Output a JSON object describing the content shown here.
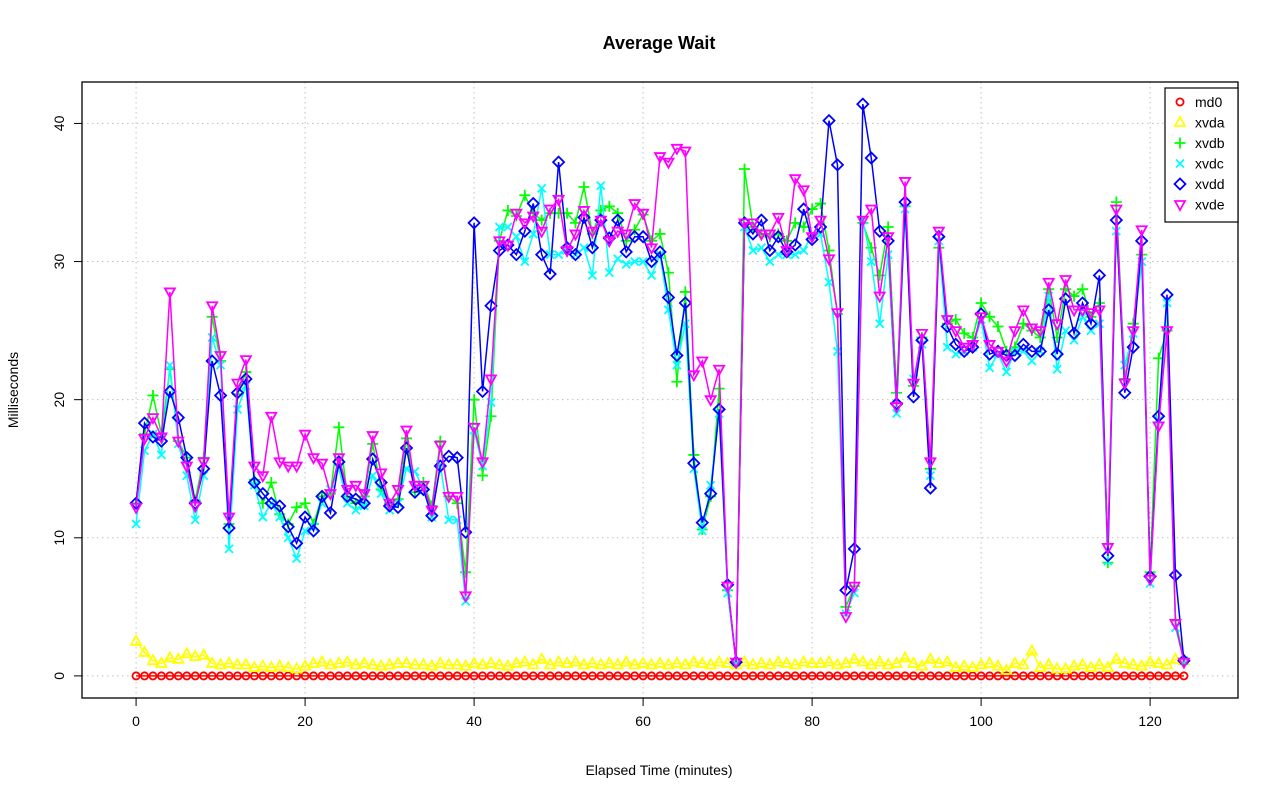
{
  "chart_data": {
    "type": "line",
    "title": "Average Wait",
    "xlabel": "Elapsed Time (minutes)",
    "ylabel": "Milliseconds",
    "xlim": [
      -6.4,
      130.4
    ],
    "ylim": [
      -1.6,
      43.0
    ],
    "xticks": [
      0,
      20,
      40,
      60,
      80,
      100,
      120
    ],
    "yticks": [
      0,
      10,
      20,
      30,
      40
    ],
    "grid": true,
    "legend_position": "top-right",
    "x": [
      0,
      1,
      2,
      3,
      4,
      5,
      6,
      7,
      8,
      9,
      10,
      11,
      12,
      13,
      14,
      15,
      16,
      17,
      18,
      19,
      20,
      21,
      22,
      23,
      24,
      25,
      26,
      27,
      28,
      29,
      30,
      31,
      32,
      33,
      34,
      35,
      36,
      37,
      38,
      39,
      40,
      41,
      42,
      43,
      44,
      45,
      46,
      47,
      48,
      49,
      50,
      51,
      52,
      53,
      54,
      55,
      56,
      57,
      58,
      59,
      60,
      61,
      62,
      63,
      64,
      65,
      66,
      67,
      68,
      69,
      70,
      71,
      72,
      73,
      74,
      75,
      76,
      77,
      78,
      79,
      80,
      81,
      82,
      83,
      84,
      85,
      86,
      87,
      88,
      89,
      90,
      91,
      92,
      93,
      94,
      95,
      96,
      97,
      98,
      99,
      100,
      101,
      102,
      103,
      104,
      105,
      106,
      107,
      108,
      109,
      110,
      111,
      112,
      113,
      114,
      115,
      116,
      117,
      118,
      119,
      120,
      121,
      122,
      123,
      124
    ],
    "series": [
      {
        "name": "md0",
        "color": "#ff0000",
        "marker": "circle",
        "values": [
          0,
          0,
          0,
          0,
          0,
          0,
          0,
          0,
          0,
          0,
          0,
          0,
          0,
          0,
          0,
          0,
          0,
          0,
          0,
          0,
          0,
          0,
          0,
          0,
          0,
          0,
          0,
          0,
          0,
          0,
          0,
          0,
          0,
          0,
          0,
          0,
          0,
          0,
          0,
          0,
          0,
          0,
          0,
          0,
          0,
          0,
          0,
          0,
          0,
          0,
          0,
          0,
          0,
          0,
          0,
          0,
          0,
          0,
          0,
          0,
          0,
          0,
          0,
          0,
          0,
          0,
          0,
          0,
          0,
          0,
          0,
          0,
          0,
          0,
          0,
          0,
          0,
          0,
          0,
          0,
          0,
          0,
          0,
          0,
          0,
          0,
          0,
          0,
          0,
          0,
          0,
          0,
          0,
          0,
          0,
          0,
          0,
          0,
          0,
          0,
          0,
          0,
          0,
          0,
          0,
          0,
          0,
          0,
          0,
          0,
          0,
          0,
          0,
          0,
          0,
          0,
          0,
          0,
          0,
          0,
          0,
          0,
          0,
          0,
          0
        ]
      },
      {
        "name": "xvda",
        "color": "#ffff00",
        "marker": "triangle",
        "values": [
          2.5,
          1.7,
          1.1,
          0.9,
          1.3,
          1.2,
          1.6,
          1.4,
          1.5,
          0.9,
          0.8,
          0.9,
          0.8,
          0.8,
          0.6,
          0.7,
          0.6,
          0.7,
          0.6,
          0.5,
          0.7,
          0.9,
          1.0,
          0.8,
          0.9,
          1.0,
          0.8,
          0.9,
          0.8,
          0.7,
          0.8,
          0.9,
          0.9,
          0.8,
          0.8,
          0.7,
          0.9,
          0.8,
          0.8,
          0.7,
          0.9,
          0.8,
          0.9,
          0.8,
          0.7,
          0.9,
          1.0,
          0.8,
          1.2,
          0.8,
          1.0,
          0.9,
          1.0,
          0.8,
          0.9,
          0.8,
          0.9,
          0.8,
          1.0,
          0.8,
          0.9,
          0.8,
          0.9,
          0.8,
          0.9,
          0.8,
          1.0,
          0.9,
          0.8,
          1.0,
          0.9,
          0.8,
          1.0,
          0.8,
          0.9,
          0.8,
          1.0,
          0.9,
          0.8,
          1.0,
          0.9,
          0.9,
          1.0,
          0.8,
          0.9,
          1.2,
          1.0,
          0.8,
          1.0,
          0.8,
          0.9,
          1.3,
          0.9,
          0.7,
          1.2,
          0.9,
          1.0,
          0.6,
          0.7,
          0.6,
          0.8,
          0.9,
          0.7,
          0.4,
          0.9,
          0.8,
          1.8,
          0.6,
          0.8,
          0.5,
          0.5,
          0.7,
          0.8,
          0.6,
          0.8,
          0.6,
          1.2,
          0.9,
          0.8,
          0.7,
          1.0,
          0.9,
          0.8,
          1.2,
          1.1
        ]
      },
      {
        "name": "xvdb",
        "color": "#00ff00",
        "marker": "plus",
        "values": [
          12.5,
          17.5,
          20.3,
          17.5,
          22.2,
          17.0,
          15.8,
          12.7,
          15.8,
          26.0,
          22.8,
          11.0,
          20.4,
          22.0,
          14.2,
          12.5,
          14.0,
          11.7,
          11.0,
          12.2,
          12.5,
          11.0,
          13.0,
          13.2,
          18.0,
          13.0,
          12.5,
          13.0,
          16.8,
          13.5,
          12.5,
          12.8,
          17.2,
          13.3,
          14.0,
          12.3,
          17.0,
          13.0,
          12.5,
          7.5,
          20.0,
          14.5,
          18.8,
          31.5,
          33.7,
          33.3,
          34.8,
          33.5,
          33.0,
          33.5,
          33.5,
          33.5,
          32.8,
          35.4,
          32.0,
          33.7,
          34.0,
          33.5,
          31.5,
          32.3,
          33.4,
          31.5,
          32.0,
          29.2,
          21.3,
          27.8,
          16.0,
          10.6,
          13.0,
          20.8,
          6.2,
          1.0,
          36.7,
          32.5,
          32.0,
          31.8,
          32.0,
          31.5,
          32.8,
          32.5,
          33.8,
          34.2,
          30.8,
          26.2,
          5.0,
          6.5,
          32.8,
          31.0,
          29.0,
          32.5,
          20.5,
          34.0,
          21.0,
          24.5,
          15.0,
          31.0,
          25.5,
          25.8,
          24.8,
          24.5,
          27.0,
          26.0,
          25.3,
          23.5,
          23.8,
          25.5,
          25.0,
          24.5,
          28.0,
          24.5,
          28.0,
          27.5,
          28.0,
          26.0,
          27.0,
          8.2,
          34.3,
          21.5,
          25.5,
          30.5,
          7.5,
          23.0,
          25.0,
          4.0,
          1.2
        ]
      },
      {
        "name": "xvdc",
        "color": "#00ffff",
        "marker": "cross",
        "values": [
          11.0,
          16.3,
          17.5,
          16.0,
          22.5,
          16.8,
          14.5,
          11.3,
          14.5,
          24.5,
          22.5,
          9.2,
          19.3,
          21.0,
          13.8,
          11.5,
          12.5,
          11.5,
          10.0,
          8.5,
          10.5,
          10.8,
          12.5,
          13.5,
          15.0,
          12.5,
          12.0,
          12.3,
          14.5,
          13.2,
          12.0,
          12.5,
          15.0,
          14.8,
          13.5,
          11.5,
          15.3,
          11.3,
          11.3,
          5.4,
          17.8,
          15.2,
          19.8,
          32.5,
          32.5,
          31.8,
          30.0,
          32.0,
          35.3,
          30.5,
          30.5,
          30.8,
          30.5,
          31.0,
          29.0,
          35.5,
          29.2,
          30.2,
          29.8,
          30.0,
          30.0,
          29.0,
          30.5,
          26.5,
          22.5,
          25.5,
          15.0,
          10.5,
          13.8,
          19.0,
          6.0,
          1.0,
          32.5,
          30.8,
          31.0,
          30.0,
          30.5,
          30.5,
          30.5,
          30.8,
          32.0,
          32.0,
          28.5,
          23.5,
          4.5,
          6.0,
          33.0,
          30.0,
          25.5,
          30.5,
          19.0,
          33.8,
          21.5,
          24.0,
          14.5,
          31.5,
          23.8,
          23.3,
          23.5,
          23.8,
          25.8,
          22.3,
          23.3,
          22.0,
          23.5,
          23.5,
          22.8,
          23.5,
          27.5,
          22.2,
          25.0,
          24.3,
          26.0,
          25.0,
          25.5,
          8.3,
          32.2,
          22.5,
          24.8,
          30.0,
          6.7,
          18.5,
          27.0,
          3.5,
          1.1
        ]
      },
      {
        "name": "xvdd",
        "color": "#0000ff",
        "marker": "diamond",
        "values": [
          12.5,
          18.3,
          17.3,
          17.0,
          20.6,
          18.7,
          15.8,
          12.5,
          15.0,
          22.8,
          20.3,
          10.7,
          20.5,
          21.5,
          14.0,
          13.2,
          12.5,
          12.3,
          10.8,
          9.6,
          11.5,
          10.5,
          13.0,
          11.8,
          15.5,
          13.0,
          12.8,
          12.5,
          15.7,
          14.0,
          12.3,
          12.2,
          16.5,
          13.3,
          13.5,
          11.6,
          15.2,
          15.9,
          15.8,
          10.4,
          32.8,
          20.6,
          26.8,
          30.8,
          31.2,
          30.5,
          32.2,
          34.2,
          30.5,
          29.1,
          37.2,
          31.0,
          30.5,
          33.2,
          31.0,
          33.0,
          31.7,
          33.0,
          30.7,
          31.8,
          31.8,
          30.0,
          30.7,
          27.4,
          23.2,
          27.0,
          15.4,
          11.1,
          13.2,
          19.3,
          6.6,
          1.0,
          32.8,
          32.0,
          33.0,
          30.8,
          31.8,
          30.7,
          31.2,
          33.8,
          31.6,
          32.5,
          40.2,
          37.0,
          6.2,
          9.2,
          41.4,
          37.5,
          32.2,
          31.5,
          19.7,
          34.3,
          20.2,
          24.3,
          13.6,
          31.8,
          25.3,
          24.0,
          23.5,
          23.8,
          26.2,
          23.3,
          23.5,
          23.2,
          23.2,
          24.0,
          23.5,
          23.5,
          26.5,
          23.3,
          27.3,
          24.8,
          27.0,
          25.5,
          29.0,
          8.7,
          33.0,
          20.5,
          23.8,
          31.5,
          7.2,
          18.8,
          27.6,
          7.3,
          1.1
        ]
      },
      {
        "name": "xvde",
        "color": "#ff00ff",
        "marker": "inverted-triangle",
        "values": [
          12.2,
          17.2,
          18.7,
          17.3,
          27.8,
          17.0,
          15.2,
          12.3,
          15.5,
          26.8,
          23.2,
          11.5,
          21.2,
          22.9,
          15.2,
          14.5,
          18.8,
          15.5,
          15.2,
          15.2,
          17.5,
          15.8,
          15.4,
          13.2,
          15.8,
          13.5,
          13.8,
          13.2,
          17.4,
          14.7,
          12.5,
          13.5,
          17.8,
          13.8,
          13.8,
          12.0,
          16.7,
          13.0,
          13.0,
          5.8,
          18.0,
          15.5,
          21.5,
          31.5,
          31.2,
          33.5,
          32.8,
          33.3,
          32.2,
          33.8,
          34.5,
          30.8,
          32.0,
          33.7,
          32.2,
          33.0,
          31.5,
          32.2,
          32.0,
          34.2,
          33.5,
          31.0,
          37.6,
          37.2,
          38.2,
          38.0,
          21.8,
          22.8,
          20.0,
          22.2,
          6.5,
          1.0,
          32.8,
          32.8,
          32.0,
          32.0,
          33.2,
          30.8,
          36.0,
          35.2,
          31.8,
          33.0,
          30.2,
          26.3,
          4.3,
          6.5,
          33.0,
          33.8,
          27.5,
          31.8,
          19.5,
          35.8,
          21.2,
          24.8,
          15.5,
          32.2,
          25.8,
          25.0,
          23.8,
          24.0,
          26.0,
          24.0,
          23.5,
          22.8,
          25.0,
          26.5,
          25.2,
          25.0,
          28.5,
          25.5,
          28.7,
          26.5,
          26.5,
          26.3,
          26.5,
          9.3,
          33.8,
          21.2,
          25.0,
          32.3,
          7.0,
          18.1,
          25.0,
          3.8,
          1.0
        ]
      }
    ]
  }
}
